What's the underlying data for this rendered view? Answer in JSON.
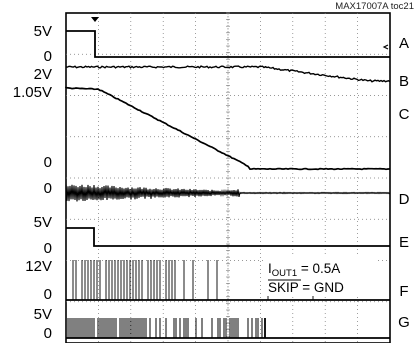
{
  "chart_data": {
    "type": "line",
    "title": "MAX17007A toc21",
    "x_grid_divisions": 10,
    "y_grid_divisions": 8,
    "grid": true,
    "left_labels": [
      "5V",
      "0",
      "2V",
      "1.05V",
      "0",
      "0",
      "5V",
      "0",
      "12V",
      "0",
      "5V",
      "0"
    ],
    "channels": [
      {
        "id": "A",
        "description": "digital step high to low"
      },
      {
        "id": "B",
        "description": "2V rail, ramps down late"
      },
      {
        "id": "C",
        "description": "1.05V output ramps to 0"
      },
      {
        "id": "D",
        "description": "switching node burst around 0"
      },
      {
        "id": "E",
        "description": "5V steps to 0"
      },
      {
        "id": "F",
        "description": "12V pulse train, sparse"
      },
      {
        "id": "G",
        "description": "5V pulse burst ends"
      }
    ],
    "annotations": [
      {
        "main": "I",
        "sub": "OUT1",
        "rest": " = 0.5A"
      },
      {
        "main": "SKIP = GND"
      }
    ]
  }
}
